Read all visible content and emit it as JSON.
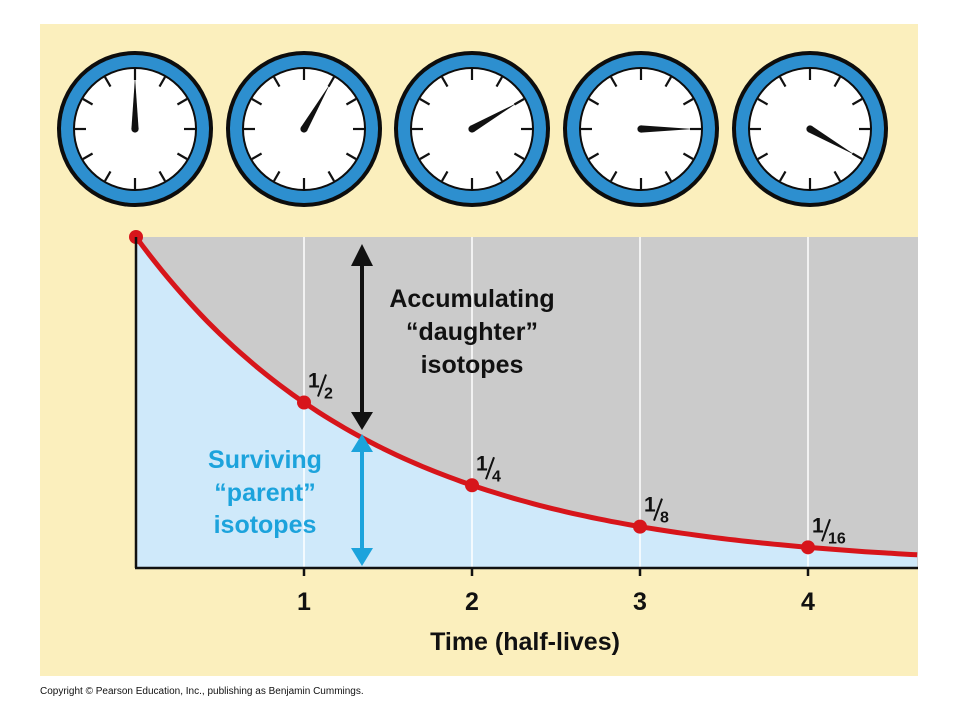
{
  "chart_data": {
    "type": "line",
    "x": [
      0,
      1,
      2,
      3,
      4
    ],
    "values": [
      1,
      0.5,
      0.25,
      0.125,
      0.0625
    ],
    "point_labels": [
      {
        "num": "1",
        "den": "2"
      },
      {
        "num": "1",
        "den": "4"
      },
      {
        "num": "1",
        "den": "8"
      },
      {
        "num": "1",
        "den": "16"
      }
    ],
    "x_ticks": [
      "1",
      "2",
      "3",
      "4"
    ],
    "xlabel": "Time (half-lives)",
    "xlim": [
      0,
      4.65
    ],
    "ylim": [
      0,
      1
    ],
    "grid": "vertical",
    "clock_minutes": [
      0,
      5,
      10,
      15,
      20
    ],
    "annotations": {
      "daughter": [
        "Accumulating",
        "“daughter”",
        "isotopes"
      ],
      "parent": [
        "Surviving",
        "“parent”",
        "isotopes"
      ]
    },
    "colors": {
      "curve": "#d7151b",
      "parent_fill": "#cfe9fa",
      "daughter_fill": "#cbcbcb",
      "panel": "#fbefbd",
      "parent_text": "#1ca3dc",
      "clock_rim": "#2d8fcf"
    }
  },
  "footer": {
    "copyright": "Copyright © Pearson Education, Inc., publishing as Benjamin Cummings."
  }
}
